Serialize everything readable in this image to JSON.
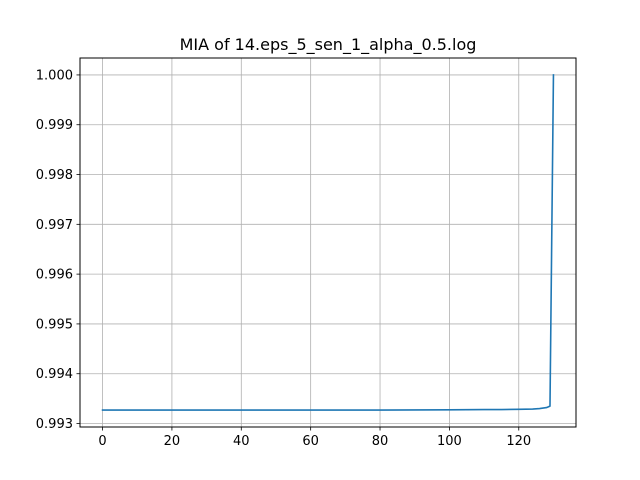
{
  "chart_data": {
    "type": "line",
    "title": "MIA of 14.eps_5_sen_1_alpha_0.5.log",
    "xlabel": "",
    "ylabel": "",
    "xlim": [
      -6.5,
      136.5
    ],
    "ylim": [
      0.99293,
      1.00034
    ],
    "xticks": [
      0,
      20,
      40,
      60,
      80,
      100,
      120
    ],
    "yticks": [
      0.993,
      0.994,
      0.995,
      0.996,
      0.997,
      0.998,
      0.999,
      1.0
    ],
    "ytick_labels": [
      "0.993",
      "0.994",
      "0.995",
      "0.996",
      "0.997",
      "0.998",
      "0.999",
      "1.000"
    ],
    "grid": true,
    "series": [
      {
        "color": "#1f77b4",
        "x": [
          0,
          20,
          40,
          60,
          80,
          100,
          110,
          115,
          120,
          124,
          126,
          128,
          129,
          130
        ],
        "y": [
          0.99327,
          0.99327,
          0.99327,
          0.99327,
          0.99327,
          0.993275,
          0.99328,
          0.99328,
          0.993285,
          0.99329,
          0.9933,
          0.99332,
          0.99335,
          1.0
        ]
      }
    ]
  }
}
